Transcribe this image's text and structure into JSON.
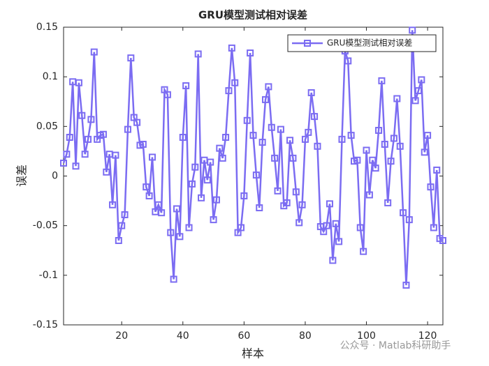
{
  "chart_data": {
    "type": "line",
    "title": "GRU模型测试相对误差",
    "x_label": "样本",
    "y_label": "误差",
    "annotation": "公众号 · Matlab科研助手",
    "legend": "northeast",
    "xlim": [
      1,
      125
    ],
    "xticks": [
      20,
      40,
      60,
      80,
      100,
      120
    ],
    "ylim": [
      -0.15,
      0.15
    ],
    "yticks": [
      -0.15,
      -0.1,
      -0.05,
      0,
      0.05,
      0.1,
      0.15
    ],
    "x": [
      1,
      2,
      3,
      4,
      5,
      6,
      7,
      8,
      9,
      10,
      11,
      12,
      13,
      14,
      15,
      16,
      17,
      18,
      19,
      20,
      21,
      22,
      23,
      24,
      25,
      26,
      27,
      28,
      29,
      30,
      31,
      32,
      33,
      34,
      35,
      36,
      37,
      38,
      39,
      40,
      41,
      42,
      43,
      44,
      45,
      46,
      47,
      48,
      49,
      50,
      51,
      52,
      53,
      54,
      55,
      56,
      57,
      58,
      59,
      60,
      61,
      62,
      63,
      64,
      65,
      66,
      67,
      68,
      69,
      70,
      71,
      72,
      73,
      74,
      75,
      76,
      77,
      78,
      79,
      80,
      81,
      82,
      83,
      84,
      85,
      86,
      87,
      88,
      89,
      90,
      91,
      92,
      93,
      94,
      95,
      96,
      97,
      98,
      99,
      100,
      101,
      102,
      103,
      104,
      105,
      106,
      107,
      108,
      109,
      110,
      111,
      112,
      113,
      114,
      115,
      116,
      117,
      118,
      119,
      120,
      121,
      122,
      123,
      124,
      125
    ],
    "series": [
      {
        "name": "GRU模型测试相对误差",
        "color": "#7b6cf2",
        "values": [
          0.013,
          0.022,
          0.039,
          0.095,
          0.01,
          0.094,
          0.061,
          0.022,
          0.037,
          0.057,
          0.125,
          0.037,
          0.041,
          0.042,
          0.004,
          0.022,
          -0.029,
          0.021,
          -0.065,
          -0.05,
          -0.039,
          0.047,
          0.119,
          0.059,
          0.054,
          0.031,
          0.032,
          -0.011,
          -0.02,
          0.019,
          -0.036,
          -0.029,
          -0.037,
          0.087,
          0.082,
          -0.057,
          -0.104,
          -0.033,
          -0.061,
          0.039,
          0.091,
          -0.052,
          -0.008,
          0.009,
          0.123,
          -0.022,
          0.016,
          -0.004,
          0.014,
          -0.044,
          -0.024,
          0.028,
          0.018,
          0.039,
          0.086,
          0.129,
          0.094,
          -0.057,
          -0.052,
          -0.02,
          0.056,
          0.124,
          0.041,
          0.001,
          -0.032,
          0.034,
          0.077,
          0.09,
          0.049,
          0.018,
          -0.015,
          0.047,
          -0.03,
          -0.027,
          0.036,
          0.018,
          -0.016,
          -0.047,
          -0.029,
          0.037,
          0.044,
          0.084,
          0.06,
          0.03,
          -0.051,
          -0.056,
          -0.05,
          -0.028,
          -0.085,
          -0.048,
          -0.066,
          0.037,
          0.126,
          0.116,
          0.041,
          0.015,
          0.016,
          -0.052,
          -0.076,
          0.026,
          -0.019,
          0.016,
          0.008,
          0.046,
          0.096,
          0.032,
          -0.027,
          0.015,
          0.038,
          0.078,
          0.03,
          -0.037,
          -0.11,
          -0.044,
          0.147,
          0.076,
          0.086,
          0.097,
          0.024,
          0.041,
          -0.011,
          -0.052,
          0.006,
          -0.063,
          -0.065
        ]
      }
    ]
  }
}
